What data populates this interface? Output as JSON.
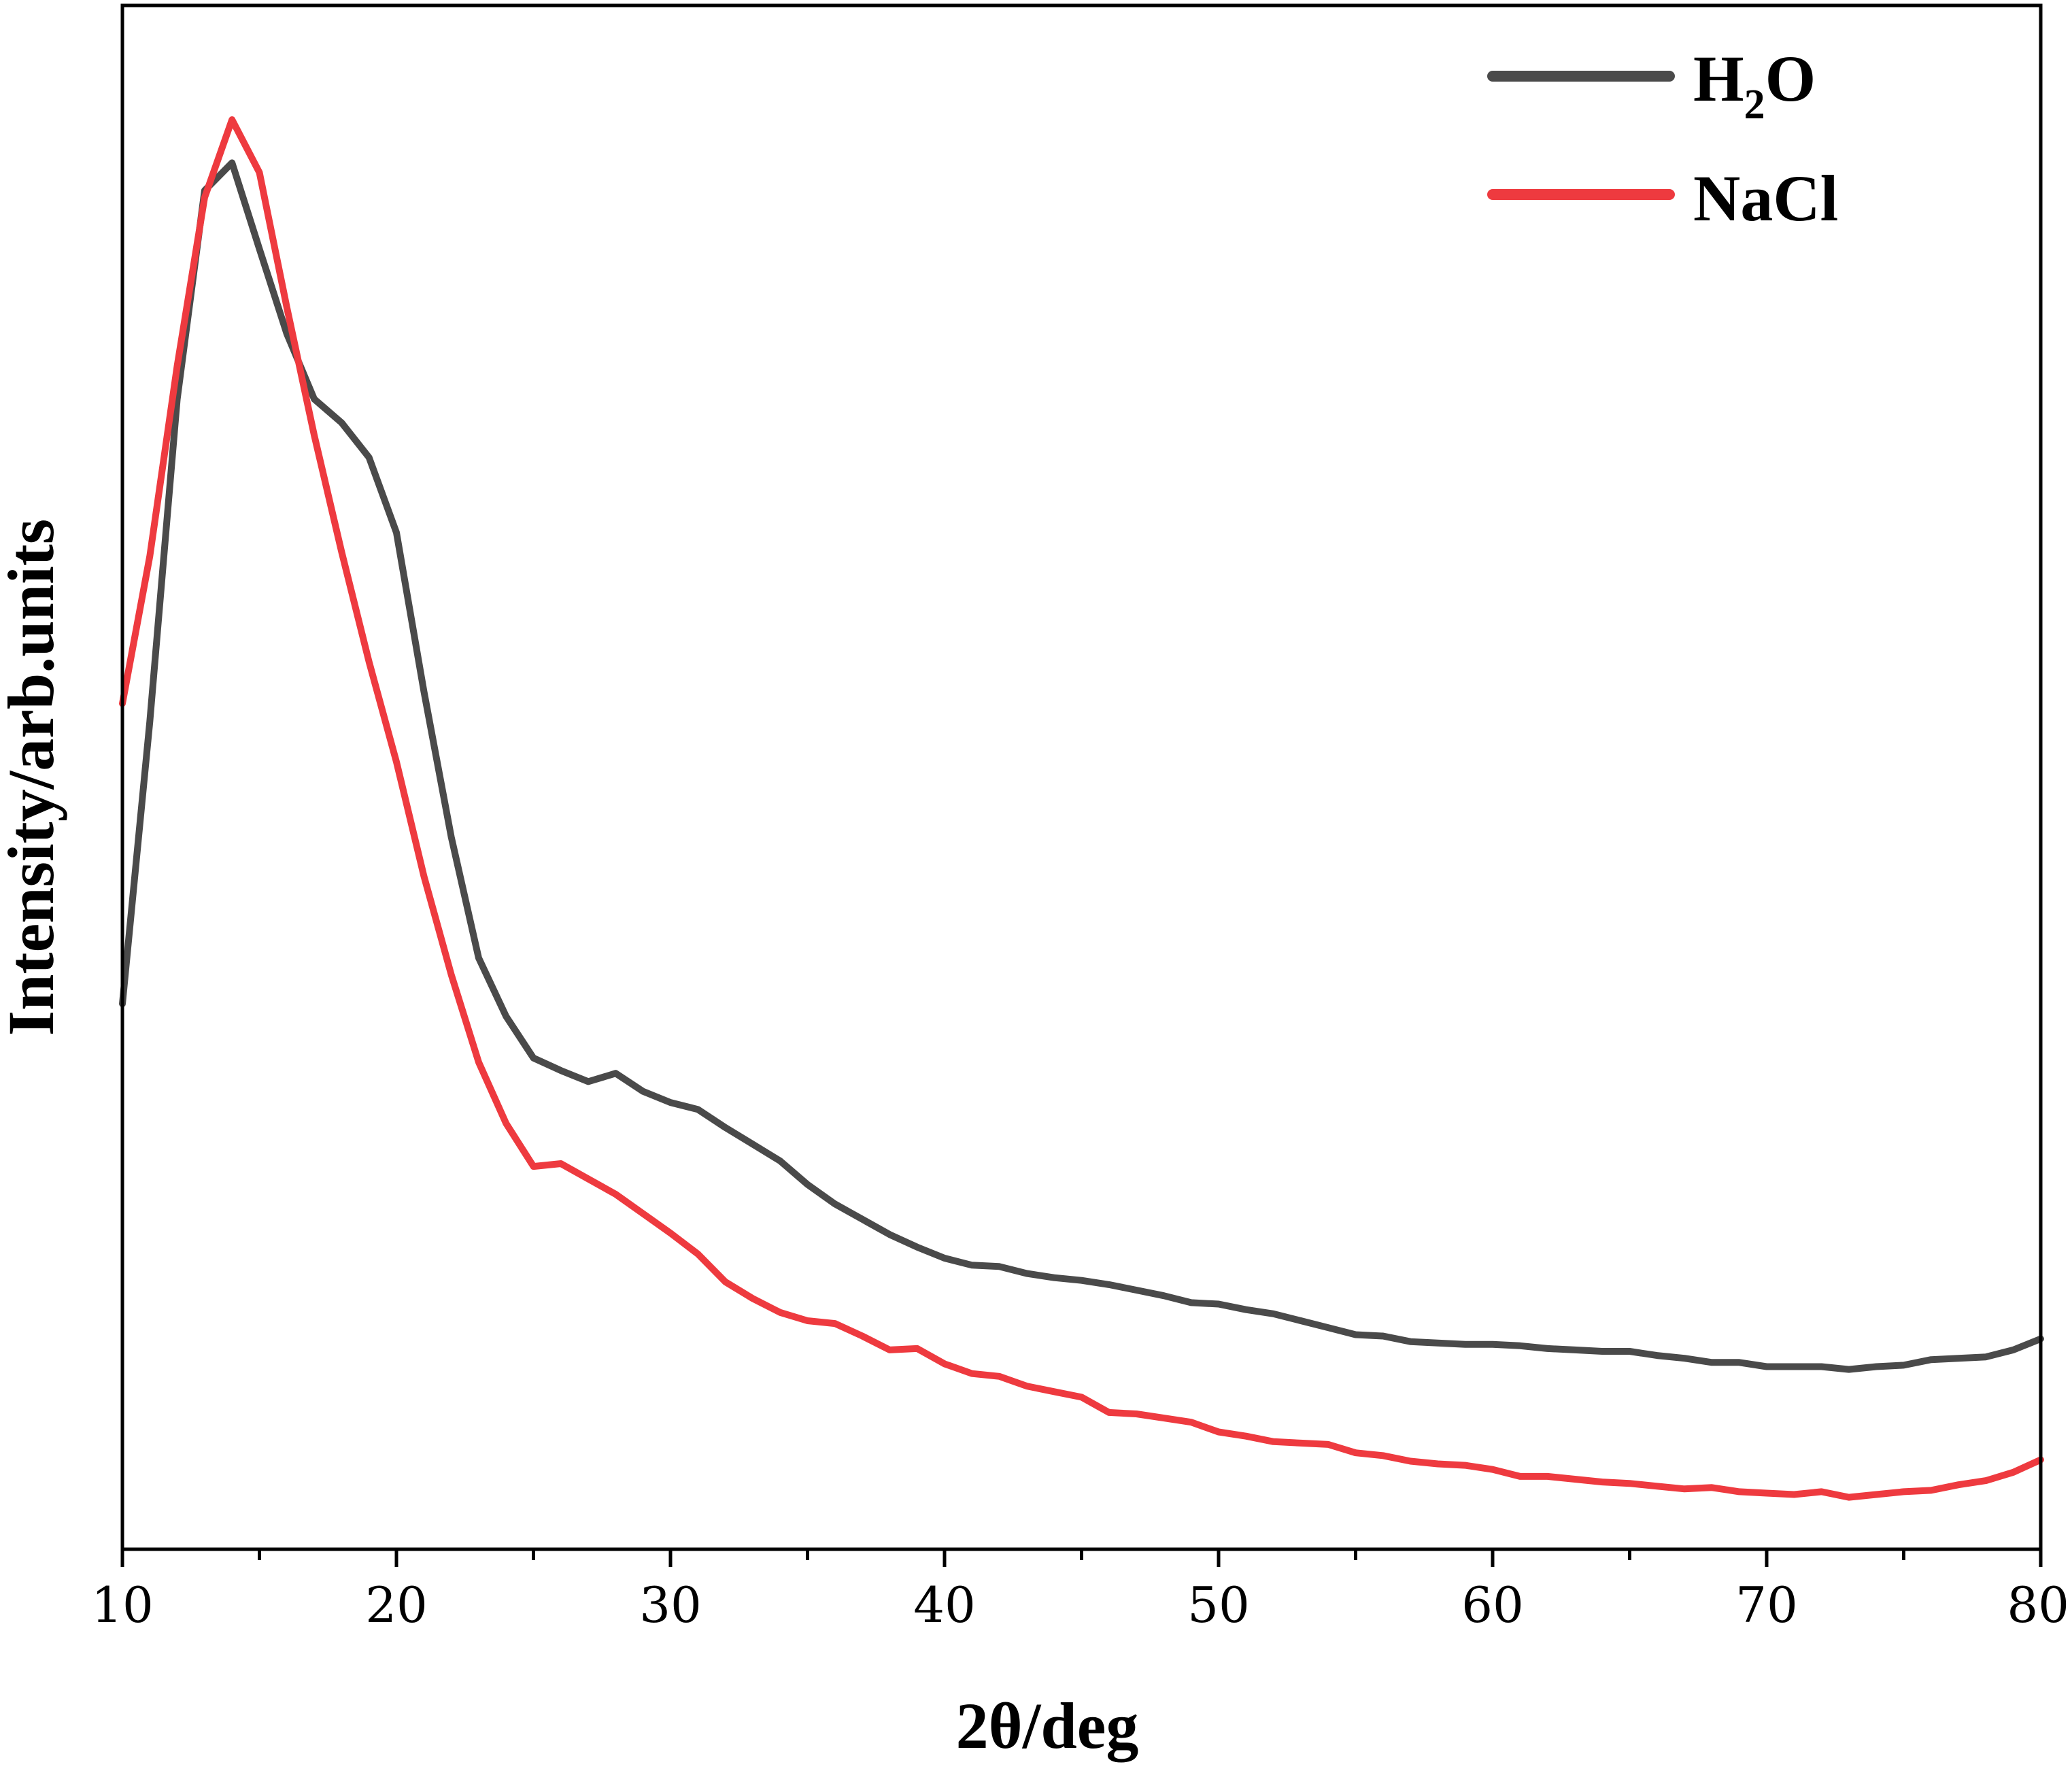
{
  "chart_data": {
    "type": "line",
    "title": "",
    "xlabel": "2θ/deg",
    "ylabel": "Intensity/arb.units",
    "xlim": [
      10,
      80
    ],
    "ylim": [
      0,
      100
    ],
    "xticks": [
      10,
      20,
      30,
      40,
      50,
      60,
      70,
      80
    ],
    "y_tick_labels": false,
    "grid": false,
    "legend_position": "top-right",
    "series": [
      {
        "name": "H₂O",
        "legend_main": "H",
        "legend_sub": "2",
        "legend_tail": "O",
        "color": "#4a4a4a",
        "x": [
          10,
          11,
          12,
          13,
          14,
          15,
          16,
          17,
          18,
          19,
          20,
          21,
          22,
          23,
          24,
          25,
          26,
          27,
          28,
          29,
          30,
          31,
          32,
          33,
          34,
          35,
          36,
          37,
          38,
          39,
          40,
          41,
          42,
          43,
          44,
          45,
          46,
          47,
          48,
          49,
          50,
          51,
          52,
          53,
          54,
          55,
          56,
          57,
          58,
          59,
          60,
          61,
          62,
          63,
          64,
          65,
          66,
          67,
          68,
          69,
          70,
          71,
          72,
          73,
          74,
          75,
          76,
          77,
          78,
          79,
          80
        ],
        "y": [
          36.4,
          56.7,
          79.9,
          94.9,
          96.9,
          90.7,
          84.6,
          79.9,
          78.2,
          75.7,
          70.3,
          58.9,
          48.4,
          39.7,
          35.5,
          32.5,
          31.6,
          30.8,
          31.4,
          30.1,
          29.3,
          28.8,
          27.5,
          26.3,
          25.1,
          23.4,
          22.0,
          20.9,
          19.8,
          18.9,
          18.1,
          17.6,
          17.5,
          17.0,
          16.7,
          16.5,
          16.2,
          15.8,
          15.4,
          14.9,
          14.8,
          14.4,
          14.1,
          13.6,
          13.1,
          12.6,
          12.5,
          12.1,
          12.0,
          11.9,
          11.9,
          11.8,
          11.6,
          11.5,
          11.4,
          11.4,
          11.1,
          10.9,
          10.6,
          10.6,
          10.3,
          10.3,
          10.3,
          10.1,
          10.3,
          10.4,
          10.8,
          10.9,
          11.0,
          11.5,
          12.3
        ]
      },
      {
        "name": "NaCl",
        "color": "#ee3a3f",
        "x": [
          10,
          11,
          12,
          13,
          14,
          15,
          16,
          17,
          18,
          19,
          20,
          21,
          22,
          23,
          24,
          25,
          26,
          27,
          28,
          29,
          30,
          31,
          32,
          33,
          34,
          35,
          36,
          37,
          38,
          39,
          40,
          41,
          42,
          43,
          44,
          45,
          46,
          47,
          48,
          49,
          50,
          51,
          52,
          53,
          54,
          55,
          56,
          57,
          58,
          59,
          60,
          61,
          62,
          63,
          64,
          65,
          66,
          67,
          68,
          69,
          70,
          71,
          72,
          73,
          74,
          75,
          76,
          77,
          78,
          79,
          80
        ],
        "y": [
          58.0,
          68.6,
          82.3,
          94.4,
          100.0,
          96.2,
          86.5,
          77.3,
          68.9,
          61.0,
          53.8,
          45.6,
          38.5,
          32.2,
          27.8,
          24.7,
          24.9,
          23.8,
          22.7,
          21.3,
          19.9,
          18.4,
          16.4,
          15.2,
          14.2,
          13.6,
          13.4,
          12.5,
          11.5,
          11.6,
          10.5,
          9.8,
          9.6,
          8.9,
          8.5,
          8.1,
          7.0,
          6.9,
          6.6,
          6.3,
          5.6,
          5.3,
          4.9,
          4.8,
          4.7,
          4.1,
          3.9,
          3.5,
          3.3,
          3.2,
          2.9,
          2.4,
          2.4,
          2.2,
          2.0,
          1.9,
          1.7,
          1.5,
          1.6,
          1.3,
          1.2,
          1.1,
          1.3,
          0.9,
          1.1,
          1.3,
          1.4,
          1.8,
          2.1,
          2.7,
          3.6
        ]
      }
    ]
  }
}
